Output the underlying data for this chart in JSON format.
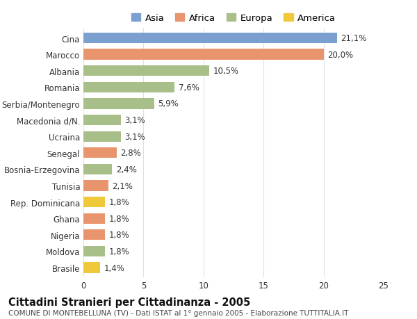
{
  "categories": [
    "Brasile",
    "Moldova",
    "Nigeria",
    "Ghana",
    "Rep. Dominicana",
    "Tunisia",
    "Bosnia-Erzegovina",
    "Senegal",
    "Ucraina",
    "Macedonia d/N.",
    "Serbia/Montenegro",
    "Romania",
    "Albania",
    "Marocco",
    "Cina"
  ],
  "values": [
    1.4,
    1.8,
    1.8,
    1.8,
    1.8,
    2.1,
    2.4,
    2.8,
    3.1,
    3.1,
    5.9,
    7.6,
    10.5,
    20.0,
    21.1
  ],
  "colors": [
    "#f0c93a",
    "#a8bf8a",
    "#e8956d",
    "#e8956d",
    "#f0c93a",
    "#e8956d",
    "#a8bf8a",
    "#e8956d",
    "#a8bf8a",
    "#a8bf8a",
    "#a8bf8a",
    "#a8bf8a",
    "#a8bf8a",
    "#e8956d",
    "#7b9fcf"
  ],
  "labels": [
    "1,4%",
    "1,8%",
    "1,8%",
    "1,8%",
    "1,8%",
    "2,1%",
    "2,4%",
    "2,8%",
    "3,1%",
    "3,1%",
    "5,9%",
    "7,6%",
    "10,5%",
    "20,0%",
    "21,1%"
  ],
  "legend_labels": [
    "Asia",
    "Africa",
    "Europa",
    "America"
  ],
  "legend_colors": [
    "#7b9fcf",
    "#e8956d",
    "#a8bf8a",
    "#f0c93a"
  ],
  "title": "Cittadini Stranieri per Cittadinanza - 2005",
  "subtitle": "COMUNE DI MONTEBELLUNA (TV) - Dati ISTAT al 1° gennaio 2005 - Elaborazione TUTTITALIA.IT",
  "xlim": [
    0,
    25
  ],
  "xticks": [
    0,
    5,
    10,
    15,
    20,
    25
  ],
  "background_color": "#ffffff",
  "grid_color": "#e0e0e0",
  "bar_height": 0.65,
  "label_fontsize": 8.5,
  "tick_fontsize": 8.5,
  "title_fontsize": 10.5,
  "subtitle_fontsize": 7.5,
  "legend_fontsize": 9.5
}
